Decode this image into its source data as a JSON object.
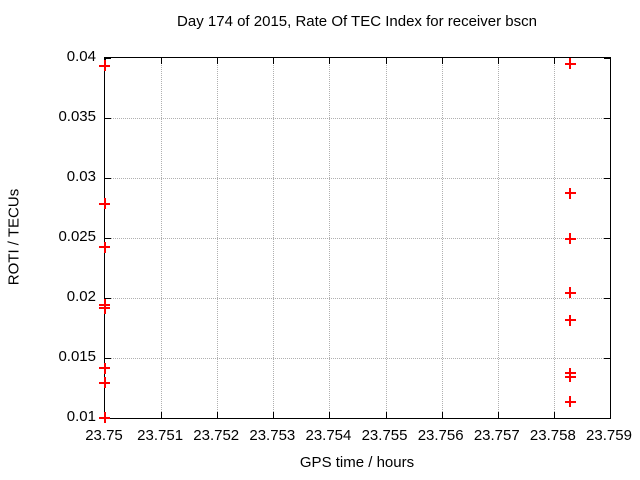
{
  "chart": {
    "title": "Day 174 of 2015, Rate Of TEC Index for receiver bscn",
    "xlabel": "GPS time / hours",
    "ylabel": "ROTI / TECUs"
  },
  "chart_data": {
    "type": "scatter",
    "title": "Day 174 of 2015, Rate Of TEC Index for receiver bscn",
    "xlabel": "GPS time / hours",
    "ylabel": "ROTI / TECUs",
    "xlim": [
      23.75,
      23.759
    ],
    "ylim": [
      0.01,
      0.04
    ],
    "x_ticks": [
      "23.75",
      "23.751",
      "23.752",
      "23.753",
      "23.754",
      "23.755",
      "23.756",
      "23.757",
      "23.758",
      "23.759"
    ],
    "y_ticks": [
      "0.01",
      "0.015",
      "0.02",
      "0.025",
      "0.03",
      "0.035",
      "0.04"
    ],
    "grid": true,
    "legend_position": "none",
    "marker_style": "plus",
    "series": [
      {
        "name": "bscn",
        "color": "#ff0000",
        "points": [
          [
            23.75,
            0.0393
          ],
          [
            23.75,
            0.0278
          ],
          [
            23.75,
            0.0242
          ],
          [
            23.75,
            0.0194
          ],
          [
            23.75,
            0.0191
          ],
          [
            23.75,
            0.0141
          ],
          [
            23.75,
            0.0129
          ],
          [
            23.75,
            0.01
          ],
          [
            23.7583,
            0.0395
          ],
          [
            23.7583,
            0.0287
          ],
          [
            23.7583,
            0.0249
          ],
          [
            23.7583,
            0.0204
          ],
          [
            23.7583,
            0.0181
          ],
          [
            23.7583,
            0.0137
          ],
          [
            23.7583,
            0.0134
          ],
          [
            23.7583,
            0.0113
          ]
        ]
      }
    ],
    "colors": {
      "marker": "#ff0000",
      "grid": "#b0b0b0",
      "axis": "#000000",
      "background": "#ffffff"
    }
  }
}
